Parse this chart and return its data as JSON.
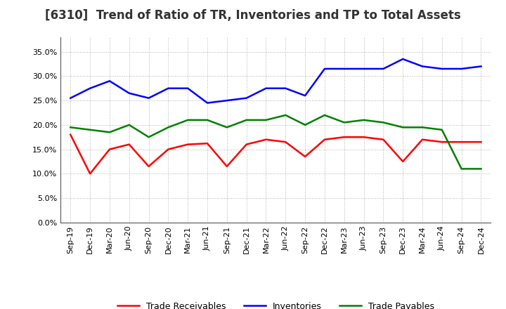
{
  "title": "[6310]  Trend of Ratio of TR, Inventories and TP to Total Assets",
  "x_labels": [
    "Sep-19",
    "Dec-19",
    "Mar-20",
    "Jun-20",
    "Sep-20",
    "Dec-20",
    "Mar-21",
    "Jun-21",
    "Sep-21",
    "Dec-21",
    "Mar-22",
    "Jun-22",
    "Sep-22",
    "Dec-22",
    "Mar-23",
    "Jun-23",
    "Sep-23",
    "Dec-23",
    "Mar-24",
    "Jun-24",
    "Sep-24",
    "Dec-24"
  ],
  "trade_receivables": [
    18.0,
    10.0,
    15.0,
    16.0,
    11.5,
    15.0,
    16.0,
    16.2,
    11.5,
    16.0,
    17.0,
    16.5,
    13.5,
    17.0,
    17.5,
    17.5,
    17.0,
    12.5,
    17.0,
    16.5,
    16.5,
    16.5
  ],
  "inventories": [
    25.5,
    27.5,
    29.0,
    26.5,
    25.5,
    27.5,
    27.5,
    24.5,
    25.0,
    25.5,
    27.5,
    27.5,
    26.0,
    31.5,
    31.5,
    31.5,
    31.5,
    33.5,
    32.0,
    31.5,
    31.5,
    32.0
  ],
  "trade_payables": [
    19.5,
    19.0,
    18.5,
    20.0,
    17.5,
    19.5,
    21.0,
    21.0,
    19.5,
    21.0,
    21.0,
    22.0,
    20.0,
    22.0,
    20.5,
    21.0,
    20.5,
    19.5,
    19.5,
    19.0,
    11.0,
    11.0
  ],
  "tr_color": "#ff0000",
  "inv_color": "#0000ff",
  "tp_color": "#008000",
  "ylim": [
    0,
    38
  ],
  "yticks": [
    0.0,
    5.0,
    10.0,
    15.0,
    20.0,
    25.0,
    30.0,
    35.0
  ],
  "background_color": "#ffffff",
  "grid_color": "#999999",
  "title_fontsize": 12,
  "legend_fontsize": 9,
  "tick_fontsize": 8,
  "line_width": 1.8
}
